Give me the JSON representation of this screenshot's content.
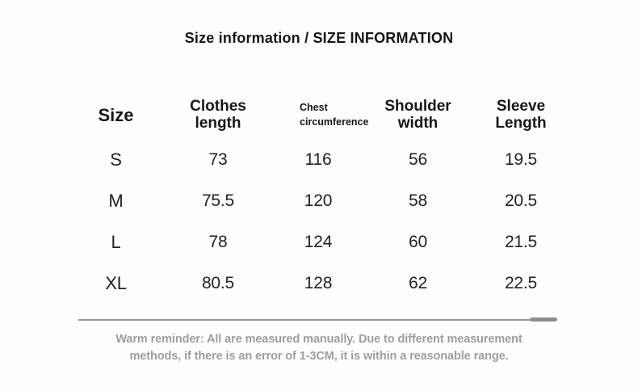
{
  "chart_data": {
    "type": "table",
    "title": "Size information / SIZE INFORMATION",
    "columns": [
      "Size",
      "Clothes length",
      "Chest circumference",
      "Shoulder width",
      "Sleeve Length"
    ],
    "rows": [
      [
        "S",
        73,
        116,
        56,
        19.5
      ],
      [
        "M",
        75.5,
        120,
        58,
        20.5
      ],
      [
        "L",
        78,
        124,
        60,
        21.5
      ],
      [
        "XL",
        80.5,
        128,
        62,
        22.5
      ]
    ],
    "note": "Warm reminder: All are measured manually. Due to different measurement methods, if there is an error of 1-3CM, it is within a reasonable range."
  },
  "header_display": {
    "size": "Size",
    "clothes_line1": "Clothes",
    "clothes_line2": "length",
    "chest_line1": "Chest",
    "chest_line2": "circumference",
    "shoulder_line1": "Shoulder",
    "shoulder_line2": "width",
    "sleeve_line1": "Sleeve",
    "sleeve_line2": "Length"
  },
  "footer": {
    "note_line1": "Warm reminder: All are measured manually. Due to different measurement",
    "note_line2": "methods, if there is an error of 1-3CM, it is within a reasonable range."
  },
  "colors": {
    "title_text": "#151515",
    "header_text": "#161616",
    "cell_text": "#222222",
    "note_text": "#9e9e9e",
    "divider": "#9a9a9a"
  }
}
